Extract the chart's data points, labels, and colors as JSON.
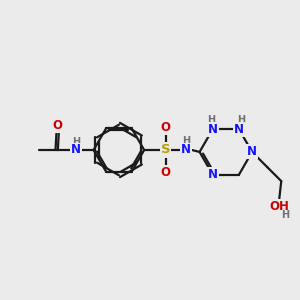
{
  "background_color": "#ebebeb",
  "bond_color": "#1a1a1a",
  "atom_colors": {
    "N": "#1414ff",
    "O": "#cc0000",
    "S": "#b8a000",
    "H": "#707070",
    "C": "#1a1a1a"
  },
  "figsize": [
    3.0,
    3.0
  ],
  "dpi": 100
}
